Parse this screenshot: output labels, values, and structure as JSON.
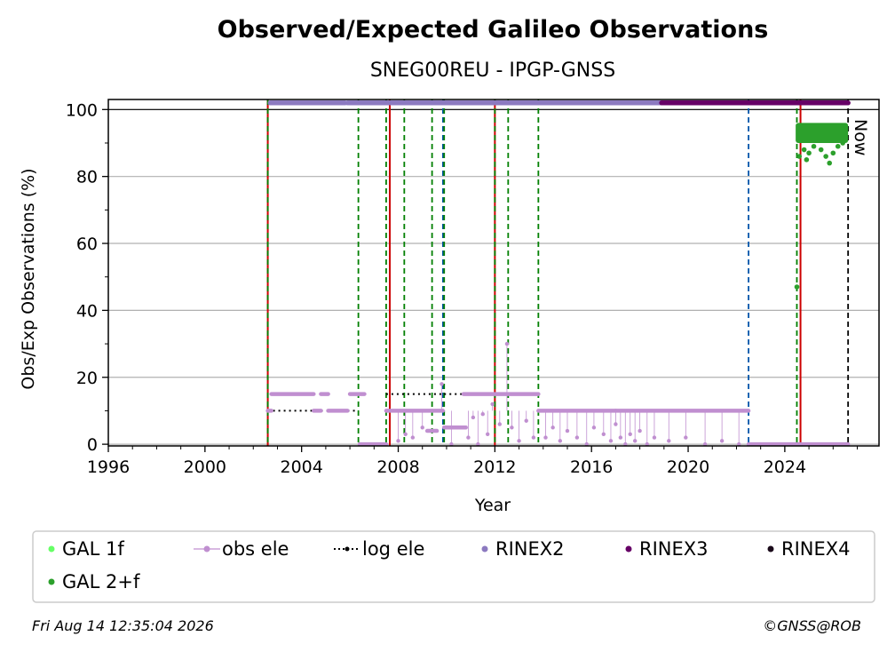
{
  "chart_data": {
    "type": "scatter",
    "title": "Observed/Expected Galileo Observations",
    "subtitle": "SNEG00REU - IPGP-GNSS",
    "xlabel": "Year",
    "ylabel": "Obs/Exp Observations (%)",
    "xlim": [
      1996,
      2027.9
    ],
    "ylim": [
      -0.5,
      103
    ],
    "xticks": [
      1996,
      2000,
      2004,
      2008,
      2012,
      2016,
      2020,
      2024
    ],
    "yticks": [
      0,
      20,
      40,
      60,
      80,
      100
    ],
    "grid": "horizontal",
    "now_label": "Now",
    "now_x": 2026.62,
    "legend": {
      "placement": "bottom",
      "entries": [
        {
          "label": "GAL 1f",
          "color": "#66ff66",
          "style": "dot"
        },
        {
          "label": "obs ele",
          "color": "#c08fd0",
          "style": "line-dot"
        },
        {
          "label": "log ele",
          "color": "#000000",
          "style": "dotted-line"
        },
        {
          "label": "RINEX2",
          "color": "#8c7ac0",
          "style": "dot"
        },
        {
          "label": "RINEX3",
          "color": "#660066",
          "style": "dot"
        },
        {
          "label": "RINEX4",
          "color": "#1a0a1a",
          "style": "dot"
        },
        {
          "label": "GAL 2+f",
          "color": "#2ca02c",
          "style": "dot"
        }
      ]
    },
    "vlines": [
      {
        "x": 2002.6,
        "color": "#cc0000",
        "style": "solid"
      },
      {
        "x": 2002.6,
        "color": "#008000",
        "style": "dashed"
      },
      {
        "x": 2006.35,
        "color": "#008000",
        "style": "dashed"
      },
      {
        "x": 2007.5,
        "color": "#008000",
        "style": "dashed"
      },
      {
        "x": 2007.65,
        "color": "#cc0000",
        "style": "solid"
      },
      {
        "x": 2008.25,
        "color": "#008000",
        "style": "dashed"
      },
      {
        "x": 2009.4,
        "color": "#008000",
        "style": "dashed"
      },
      {
        "x": 2009.85,
        "color": "#0055aa",
        "style": "dashed"
      },
      {
        "x": 2009.9,
        "color": "#008000",
        "style": "dashed"
      },
      {
        "x": 2012.0,
        "color": "#cc0000",
        "style": "solid"
      },
      {
        "x": 2012.0,
        "color": "#008000",
        "style": "dashed"
      },
      {
        "x": 2012.55,
        "color": "#008000",
        "style": "dashed"
      },
      {
        "x": 2013.8,
        "color": "#008000",
        "style": "dashed"
      },
      {
        "x": 2022.5,
        "color": "#0055aa",
        "style": "dashed"
      },
      {
        "x": 2024.5,
        "color": "#008000",
        "style": "dashed"
      },
      {
        "x": 2024.65,
        "color": "#cc0000",
        "style": "solid"
      },
      {
        "x": 2026.62,
        "color": "#000000",
        "style": "dashed"
      }
    ],
    "series": [
      {
        "name": "log ele",
        "color": "#000000",
        "steps": [
          {
            "x0": 2002.6,
            "x1": 2006.35,
            "y": 10
          },
          {
            "x0": 2007.5,
            "x1": 2009.9,
            "y": 15
          },
          {
            "x0": 2009.9,
            "x1": 2013.8,
            "y": 15
          },
          {
            "x0": 2013.8,
            "x1": 2022.5,
            "y": 10
          },
          {
            "x0": 2022.5,
            "x1": 2026.62,
            "y": 0
          }
        ]
      },
      {
        "name": "obs ele",
        "color": "#c08fd0",
        "segments": [
          {
            "x0": 2002.6,
            "x1": 2002.75,
            "y": 10
          },
          {
            "x0": 2002.75,
            "x1": 2004.5,
            "y": 15
          },
          {
            "x0": 2004.5,
            "x1": 2004.8,
            "y": 10
          },
          {
            "x0": 2004.8,
            "x1": 2005.1,
            "y": 15
          },
          {
            "x0": 2005.1,
            "x1": 2005.9,
            "y": 10
          },
          {
            "x0": 2006.0,
            "x1": 2006.6,
            "y": 15
          },
          {
            "x0": 2006.4,
            "x1": 2007.5,
            "y": 0
          },
          {
            "x0": 2007.5,
            "x1": 2009.85,
            "y": 10
          },
          {
            "x0": 2009.2,
            "x1": 2009.6,
            "y": 4
          },
          {
            "x0": 2009.9,
            "x1": 2010.8,
            "y": 5
          },
          {
            "x0": 2010.7,
            "x1": 2013.8,
            "y": 15
          },
          {
            "x0": 2013.8,
            "x1": 2017.0,
            "y": 10
          },
          {
            "x0": 2017.0,
            "x1": 2022.5,
            "y": 10
          },
          {
            "x0": 2022.5,
            "x1": 2026.62,
            "y": 0
          }
        ],
        "outliers": [
          [
            2008.0,
            1
          ],
          [
            2008.3,
            3
          ],
          [
            2008.6,
            2
          ],
          [
            2009.0,
            5
          ],
          [
            2009.8,
            18
          ],
          [
            2010.2,
            0
          ],
          [
            2010.9,
            2
          ],
          [
            2011.1,
            8
          ],
          [
            2011.3,
            0
          ],
          [
            2011.5,
            9
          ],
          [
            2011.7,
            3
          ],
          [
            2011.9,
            12
          ],
          [
            2012.2,
            6
          ],
          [
            2012.5,
            30
          ],
          [
            2012.7,
            5
          ],
          [
            2013.0,
            1
          ],
          [
            2013.3,
            7
          ],
          [
            2013.6,
            2
          ],
          [
            2014.1,
            2
          ],
          [
            2014.4,
            5
          ],
          [
            2014.7,
            1
          ],
          [
            2015.0,
            4
          ],
          [
            2015.4,
            2
          ],
          [
            2015.8,
            0
          ],
          [
            2016.1,
            5
          ],
          [
            2016.5,
            3
          ],
          [
            2016.8,
            1
          ],
          [
            2017.0,
            6
          ],
          [
            2017.2,
            2
          ],
          [
            2017.4,
            0
          ],
          [
            2017.6,
            3
          ],
          [
            2017.8,
            1
          ],
          [
            2018.0,
            4
          ],
          [
            2018.3,
            0
          ],
          [
            2018.6,
            2
          ],
          [
            2019.2,
            1
          ],
          [
            2019.9,
            2
          ],
          [
            2020.7,
            0
          ],
          [
            2021.4,
            1
          ],
          [
            2022.1,
            0
          ]
        ]
      },
      {
        "name": "RINEX2",
        "color": "#8c7ac0",
        "y": 102,
        "segments": [
          [
            2002.7,
            2005.8
          ],
          [
            2005.9,
            2018.9
          ]
        ]
      },
      {
        "name": "RINEX3",
        "color": "#660066",
        "y": 102,
        "segments": [
          [
            2018.9,
            2026.62
          ]
        ]
      },
      {
        "name": "GAL 2+f",
        "color": "#2ca02c",
        "band": {
          "x0": 2024.45,
          "x1": 2026.62,
          "ymin": 90,
          "ymax": 96
        },
        "points": [
          [
            2024.5,
            47
          ],
          [
            2024.6,
            86
          ],
          [
            2024.8,
            88
          ],
          [
            2024.9,
            85
          ],
          [
            2025.0,
            87
          ],
          [
            2025.2,
            89
          ],
          [
            2025.5,
            88
          ],
          [
            2025.7,
            86
          ],
          [
            2025.85,
            84
          ],
          [
            2026.0,
            87
          ],
          [
            2026.2,
            89
          ],
          [
            2026.4,
            90
          ]
        ]
      }
    ]
  },
  "footer": {
    "timestamp": "Fri Aug 14 12:35:04 2026",
    "credit": "©GNSS@ROB"
  }
}
